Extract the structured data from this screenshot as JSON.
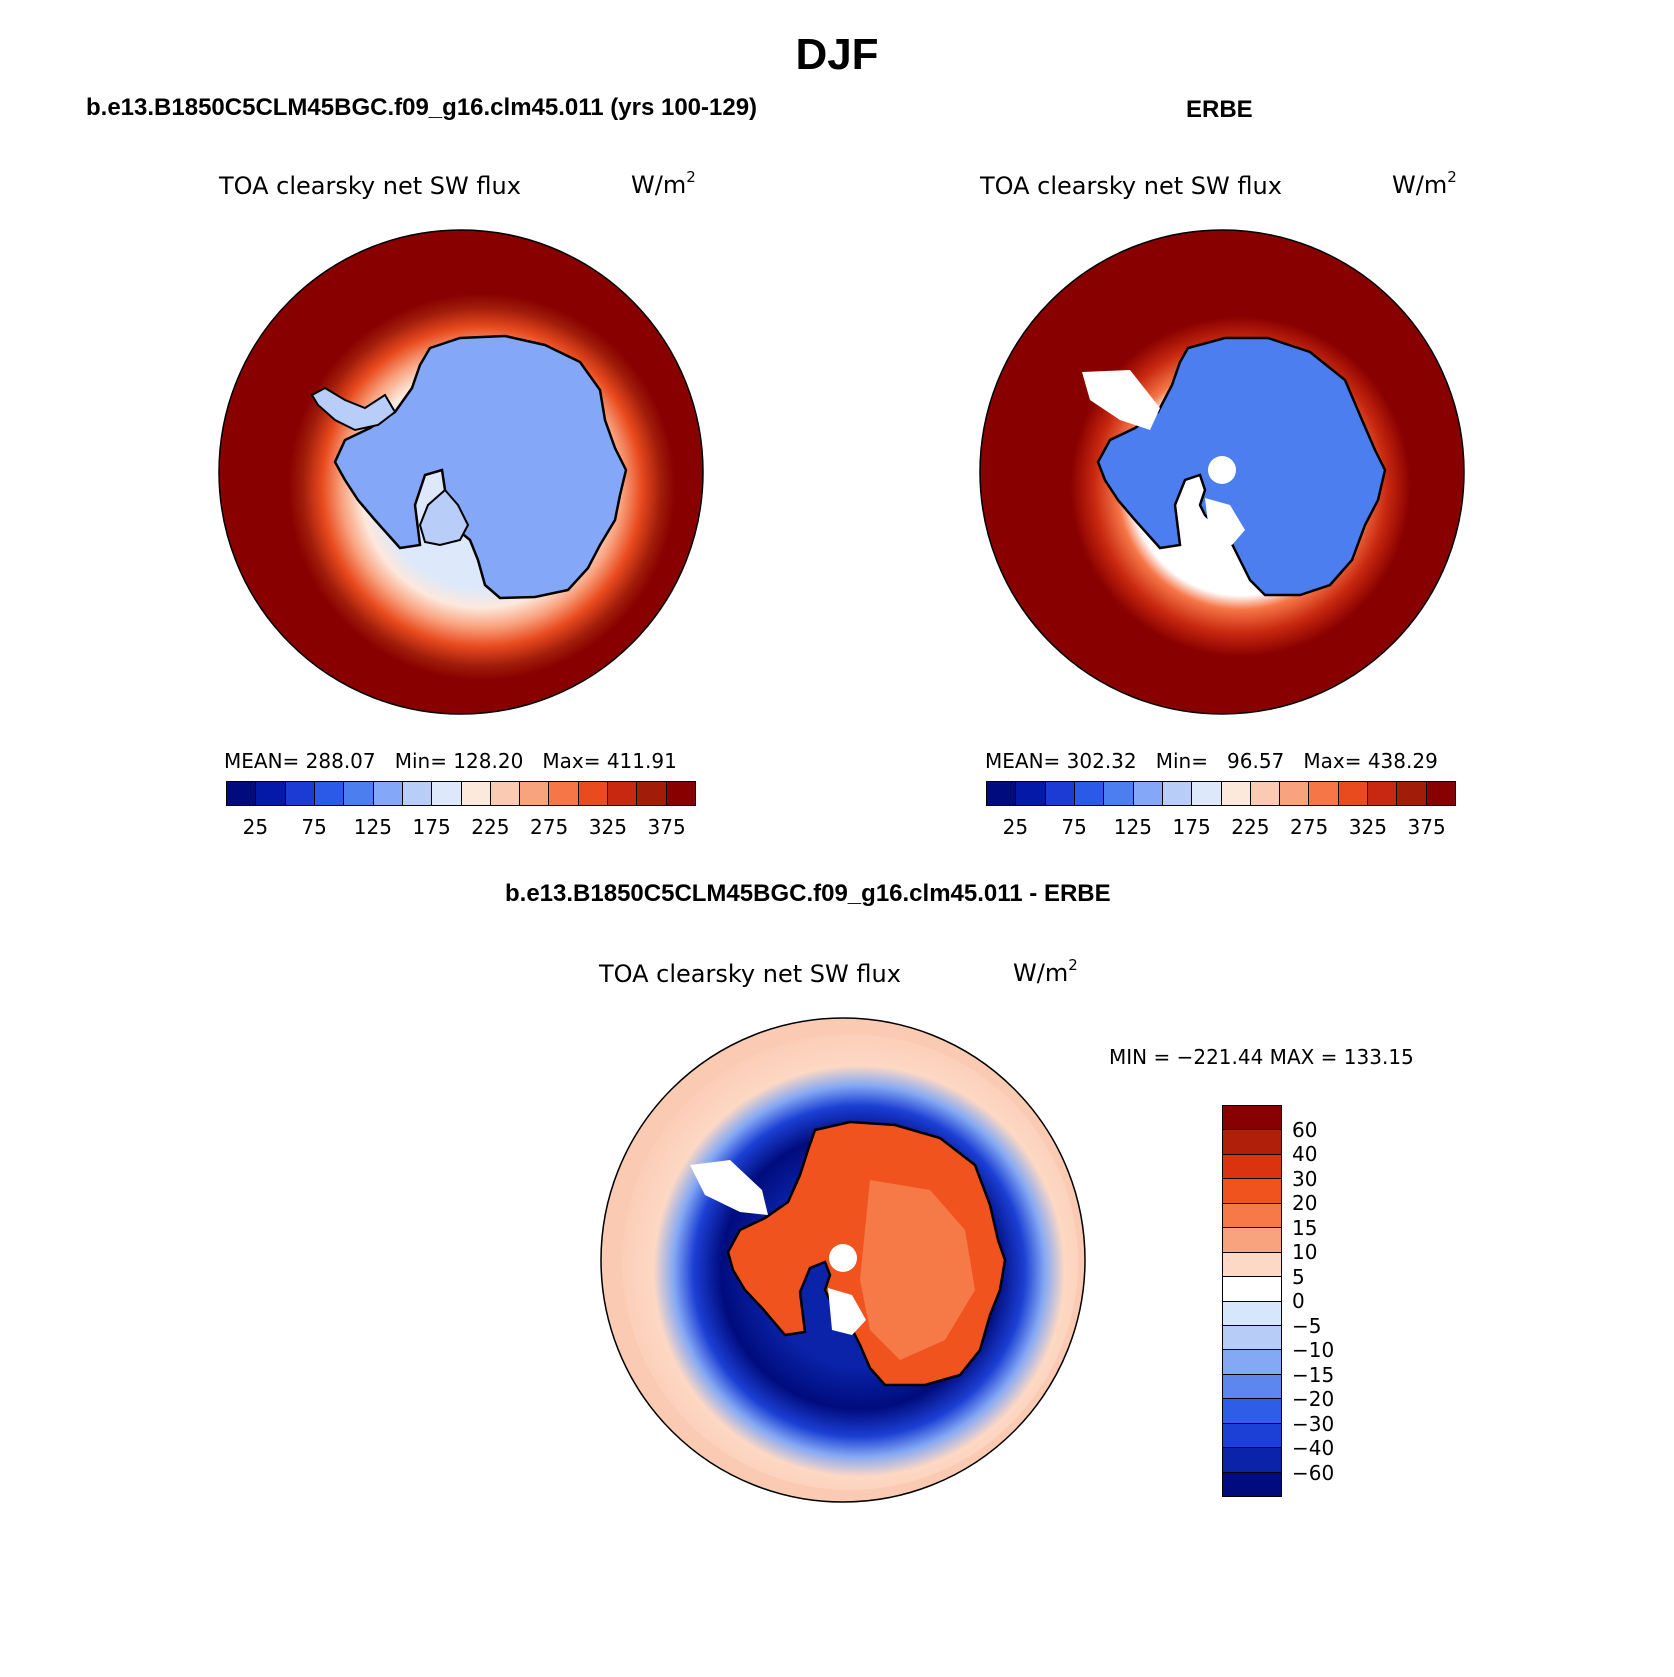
{
  "title": "DJF",
  "colors": {
    "abs_levels": [
      "#000c7d",
      "#0419a8",
      "#1c3ad4",
      "#2b5ae8",
      "#4d7ef0",
      "#84a8f7",
      "#b8cdf8",
      "#dde9fb",
      "#fde8dc",
      "#fbcab2",
      "#f9a27e",
      "#f67648",
      "#e94b1e",
      "#c8280f",
      "#a11d0a",
      "#880000"
    ],
    "diff_levels": [
      "#880000",
      "#b01f0a",
      "#d9330f",
      "#f0531d",
      "#f67a48",
      "#f9a27e",
      "#fdd8c4",
      "#ffffff",
      "#d6e6fb",
      "#b7cdf7",
      "#84a8f3",
      "#5d86ef",
      "#2e5ee8",
      "#1c3fd4",
      "#0a23a8",
      "#000c7d"
    ],
    "land_edge": "#000000"
  },
  "panels": [
    {
      "id": "model",
      "header": "b.e13.B1850C5CLM45BGC.f09_g16.clm45.011 (yrs 100-129)",
      "variable": "TOA clearsky net SW flux",
      "units_base": "W/m",
      "units_exp": "2",
      "stats": "MEAN= 288.07   Min= 128.20   Max= 411.91",
      "ocean_color": "#880000",
      "ice_color": "#84a8f7"
    },
    {
      "id": "obs",
      "header": "ERBE",
      "variable": "TOA clearsky net SW flux",
      "units_base": "W/m",
      "units_exp": "2",
      "stats": "MEAN= 302.32   Min=   96.57   Max= 438.29",
      "ocean_color": "#880000",
      "ice_color": "#4d7ef0"
    }
  ],
  "abs_colorbar_labels": [
    "25",
    "75",
    "125",
    "175",
    "225",
    "275",
    "325",
    "375"
  ],
  "diff_panel": {
    "header": "b.e13.B1850C5CLM45BGC.f09_g16.clm45.011 - ERBE",
    "variable": "TOA clearsky net SW flux",
    "units_base": "W/m",
    "units_exp": "2",
    "stats": "MIN = −221.44 MAX = 133.15",
    "colorbar_labels": [
      "60",
      "40",
      "30",
      "20",
      "15",
      "10",
      "5",
      "0",
      "−5",
      "−10",
      "−15",
      "−20",
      "−30",
      "−40",
      "−60"
    ]
  }
}
